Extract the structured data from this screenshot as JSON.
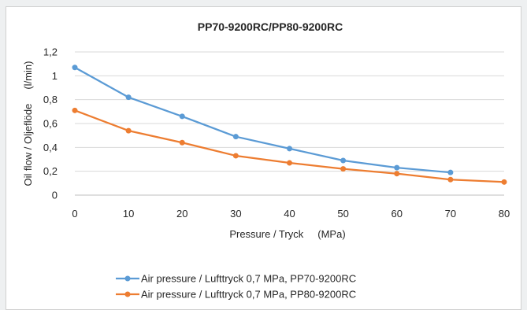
{
  "chart_data": {
    "type": "line",
    "title": "PP70-9200RC/PP80-9200RC",
    "xlabel": "Pressure / Tryck     (MPa)",
    "ylabel": "Oil flow / Oljeflöde     (l/min)",
    "xlim": [
      0,
      80
    ],
    "ylim": [
      0,
      1.2
    ],
    "x_ticks": [
      "0",
      "10",
      "20",
      "30",
      "40",
      "50",
      "60",
      "70",
      "80"
    ],
    "y_ticks": [
      "0",
      "0,2",
      "0,4",
      "0,6",
      "0,8",
      "1",
      "1,2"
    ],
    "grid": "horizontal",
    "legend_position": "bottom",
    "series": [
      {
        "name": "Air pressure / Lufttryck 0,7 MPa, PP70-9200RC",
        "color": "#5b9bd5",
        "x": [
          0,
          10,
          20,
          30,
          40,
          50,
          60,
          70
        ],
        "y": [
          1.07,
          0.82,
          0.66,
          0.49,
          0.39,
          0.29,
          0.23,
          0.19
        ]
      },
      {
        "name": "Air pressure / Lufttryck 0,7 MPa, PP80-9200RC",
        "color": "#ed7d31",
        "x": [
          0,
          10,
          20,
          30,
          40,
          50,
          60,
          70,
          80
        ],
        "y": [
          0.71,
          0.54,
          0.44,
          0.33,
          0.27,
          0.22,
          0.18,
          0.13,
          0.11
        ]
      }
    ]
  }
}
